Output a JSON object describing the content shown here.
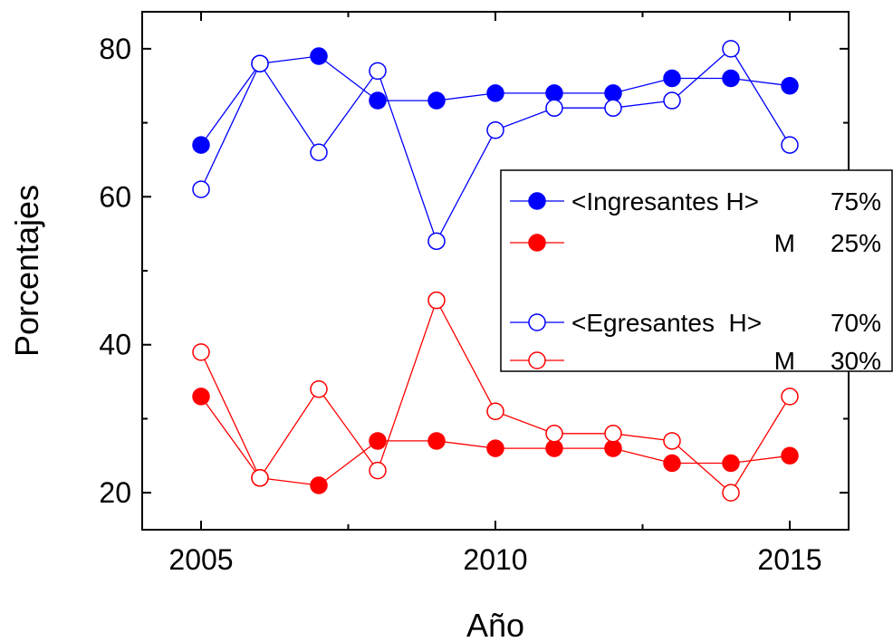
{
  "chart_data": {
    "type": "line",
    "title": "",
    "xlabel": "Año",
    "ylabel": "Porcentajes",
    "xlim": [
      2004,
      2016
    ],
    "ylim": [
      15,
      85
    ],
    "x_ticks": [
      2005,
      2010,
      2015
    ],
    "y_ticks": [
      20,
      40,
      60,
      80
    ],
    "x": [
      2005,
      2006,
      2007,
      2008,
      2009,
      2010,
      2011,
      2012,
      2013,
      2014,
      2015
    ],
    "grid": false,
    "legend_position": "right",
    "series": [
      {
        "name": "<Ingresantes H>",
        "legend_value": "75%",
        "color": "#0000ff",
        "marker": "filled",
        "values": [
          67,
          78,
          79,
          73,
          73,
          74,
          74,
          74,
          76,
          76,
          75
        ]
      },
      {
        "name": "M",
        "legend_value": "25%",
        "color": "#ff0000",
        "marker": "filled",
        "values": [
          33,
          22,
          21,
          27,
          27,
          26,
          26,
          26,
          24,
          24,
          25
        ]
      },
      {
        "name": "<Egresantes  H>",
        "legend_value": "70%",
        "color": "#0000ff",
        "marker": "open",
        "values": [
          61,
          78,
          66,
          77,
          54,
          69,
          72,
          72,
          73,
          80,
          67
        ]
      },
      {
        "name": "M",
        "legend_value": "30%",
        "color": "#ff0000",
        "marker": "open",
        "values": [
          39,
          22,
          34,
          23,
          46,
          31,
          28,
          28,
          27,
          20,
          33
        ]
      }
    ]
  }
}
